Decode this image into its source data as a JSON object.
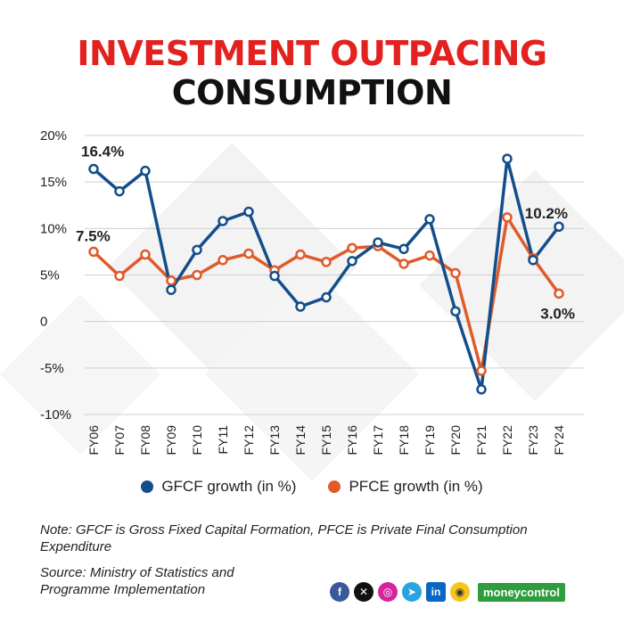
{
  "header": {
    "title_line1": "INVESTMENT OUTPACING",
    "title_line2": "CONSUMPTION"
  },
  "chart_data": {
    "type": "line",
    "title": "INVESTMENT OUTPACING CONSUMPTION",
    "x": [
      "FY06",
      "FY07",
      "FY08",
      "FY09",
      "FY10",
      "FY11",
      "FY12",
      "FY13",
      "FY14",
      "FY15",
      "FY16",
      "FY17",
      "FY18",
      "FY19",
      "FY20",
      "FY21",
      "FY22",
      "FY23",
      "FY24"
    ],
    "yticks": [
      {
        "value": 20,
        "label": "20%"
      },
      {
        "value": 15,
        "label": "15%"
      },
      {
        "value": 10,
        "label": "10%"
      },
      {
        "value": 5,
        "label": "5%"
      },
      {
        "value": 0,
        "label": "0"
      },
      {
        "value": -5,
        "label": "-5%"
      },
      {
        "value": -10,
        "label": "-10%"
      }
    ],
    "ylim": [
      -10,
      20
    ],
    "grid": true,
    "legend_position": "bottom",
    "series": [
      {
        "name": "GFCF growth (in %)",
        "color": "#134e8b",
        "values": [
          16.4,
          14.0,
          16.2,
          3.4,
          7.7,
          10.8,
          11.8,
          4.9,
          1.6,
          2.6,
          6.5,
          8.5,
          7.8,
          11.0,
          1.1,
          -7.3,
          17.5,
          6.6,
          10.2
        ]
      },
      {
        "name": "PFCE growth (in %)",
        "color": "#e05a2b",
        "values": [
          7.5,
          4.9,
          7.2,
          4.4,
          5.0,
          6.6,
          7.3,
          5.5,
          7.2,
          6.4,
          7.9,
          8.1,
          6.2,
          7.1,
          5.2,
          -5.3,
          11.2,
          6.8,
          3.0
        ]
      }
    ],
    "annotations": [
      {
        "series": 0,
        "index": 0,
        "text": "16.4%"
      },
      {
        "series": 1,
        "index": 0,
        "text": "7.5%"
      },
      {
        "series": 0,
        "index": 18,
        "text": "10.2%"
      },
      {
        "series": 1,
        "index": 18,
        "text": "3.0%"
      }
    ]
  },
  "footer": {
    "note": "Note: GFCF is Gross Fixed Capital Formation, PFCE is Private Final Consumption Expenditure",
    "source": "Source: Ministry of Statistics and Programme Implementation",
    "brand": "moneycontrol",
    "social_icons": [
      "facebook-icon",
      "x-icon",
      "instagram-icon",
      "telegram-icon",
      "linkedin-icon",
      "koo-icon"
    ]
  }
}
